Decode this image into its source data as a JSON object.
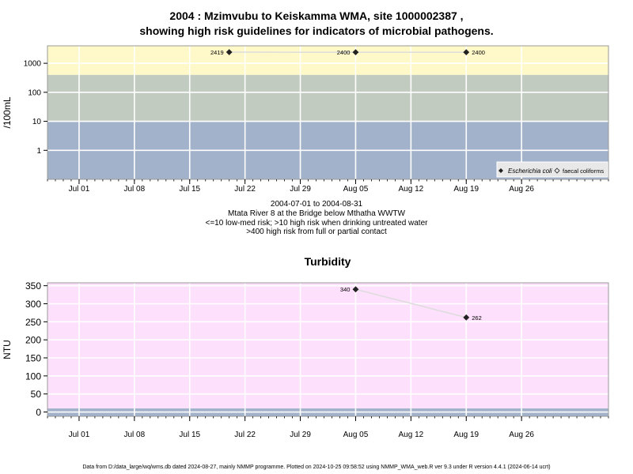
{
  "header": {
    "title_line1": "2004 : Mzimvubu to Keiskamma WMA, site 1000002387 ,",
    "title_line2": "showing high risk guidelines for indicators of microbial pathogens."
  },
  "subtitle": {
    "line1": "2004-07-01 to 2004-08-31",
    "line2": "Mtata River 8 at the Bridge below Mthatha WWTW",
    "line3": "<=10 low-med risk; >10 high risk when drinking untreated water",
    "line4": ">400 high risk from full or partial contact"
  },
  "footer": {
    "text": "Data from D:/data_large/wq/wms.db dated 2024-08-27, mainly NMMP programme. Plotted on 2024-10-25 09:58:52 using NMMP_WMA_web.R ver 9.3 under R version 4.4.1 (2024-06-14 ucrt)"
  },
  "colors": {
    "zone_high": "#fff8c8",
    "zone_mid": "#c2cbc0",
    "zone_low": "#a2b2cb",
    "turbidity_bg": "#fde0fb",
    "grid": "#ffffff",
    "line": "#dcdcdc",
    "marker": "#222222"
  },
  "chart_data": [
    {
      "type": "line",
      "title": "",
      "xlabel": "",
      "ylabel": "/100mL",
      "yscale": "log",
      "ylim": [
        0.1,
        4000
      ],
      "xlim": [
        "2004-06-27",
        "2004-09-06"
      ],
      "y_ticks": [
        1,
        10,
        100,
        1000
      ],
      "y_tick_labels": [
        "1",
        "10",
        "100",
        "1000"
      ],
      "x_ticks": [
        "2004-07-01",
        "2004-07-08",
        "2004-07-15",
        "2004-07-22",
        "2004-07-29",
        "2004-08-05",
        "2004-08-12",
        "2004-08-19",
        "2004-08-26"
      ],
      "x_tick_labels": [
        "Jul 01",
        "Jul 08",
        "Jul 15",
        "Jul 22",
        "Jul 29",
        "Aug 05",
        "Aug 12",
        "Aug 19",
        "Aug 26"
      ],
      "bands": [
        {
          "from": 0.1,
          "to": 10,
          "color": "#a2b2cb"
        },
        {
          "from": 10,
          "to": 400,
          "color": "#c2cbc0"
        },
        {
          "from": 400,
          "to": 4000,
          "color": "#fff8c8"
        }
      ],
      "series": [
        {
          "name": "Escherichia coli",
          "marker": "filled-diamond",
          "x": [
            "2004-07-20",
            "2004-08-05",
            "2004-08-19"
          ],
          "values": [
            2419,
            2400,
            2400
          ],
          "labels": [
            "2419",
            "2400",
            "2400"
          ],
          "label_side": [
            "left",
            "left",
            "right"
          ]
        },
        {
          "name": "faecal coliforms",
          "marker": "open-diamond",
          "x": [],
          "values": [],
          "labels": []
        }
      ],
      "legend_position": "bottom-right",
      "grid": true
    },
    {
      "type": "line",
      "title": "Turbidity",
      "xlabel": "",
      "ylabel": "NTU",
      "ylim": [
        -12,
        358
      ],
      "xlim": [
        "2004-06-27",
        "2004-09-06"
      ],
      "y_ticks": [
        0,
        50,
        100,
        150,
        200,
        250,
        300,
        350
      ],
      "y_tick_labels": [
        "0",
        "50",
        "100",
        "150",
        "200",
        "250",
        "300",
        "350"
      ],
      "x_ticks": [
        "2004-07-01",
        "2004-07-08",
        "2004-07-15",
        "2004-07-22",
        "2004-07-29",
        "2004-08-05",
        "2004-08-12",
        "2004-08-19",
        "2004-08-26"
      ],
      "x_tick_labels": [
        "Jul 01",
        "Jul 08",
        "Jul 15",
        "Jul 22",
        "Jul 29",
        "Aug 05",
        "Aug 12",
        "Aug 19",
        "Aug 26"
      ],
      "bands": [
        {
          "from": -12,
          "to": 10,
          "color": "#a2b2cb"
        },
        {
          "from": 10,
          "to": 358,
          "color": "#fde0fb"
        }
      ],
      "series": [
        {
          "name": "",
          "marker": "filled-diamond",
          "x": [
            "2004-08-05",
            "2004-08-19"
          ],
          "values": [
            340,
            262
          ],
          "labels": [
            "340",
            "262"
          ],
          "label_side": [
            "left",
            "right"
          ]
        }
      ],
      "grid": true
    }
  ]
}
